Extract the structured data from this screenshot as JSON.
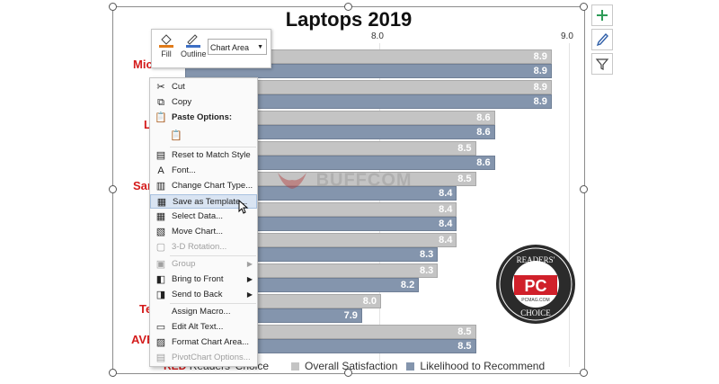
{
  "chart": {
    "title": "Laptops 2019",
    "ticks": [
      "8.0",
      "9.0"
    ]
  },
  "chart_data": {
    "type": "bar",
    "title": "Laptops 2019",
    "categories": [
      "Mic",
      "L",
      "",
      "Sam",
      "",
      "",
      "",
      "",
      "Te",
      "AVE"
    ],
    "series": [
      {
        "name": "Overall Satisfaction",
        "values": [
          8.9,
          8.9,
          8.6,
          8.5,
          8.5,
          8.4,
          8.4,
          8.3,
          8.0,
          8.5
        ]
      },
      {
        "name": "Likelihood to Recommend",
        "values": [
          8.9,
          8.9,
          8.6,
          8.6,
          8.4,
          8.4,
          8.3,
          8.2,
          7.9,
          8.5
        ]
      }
    ],
    "xlim": [
      7.0,
      9.0
    ],
    "grid": true,
    "legend": "bottom"
  },
  "labels": {
    "values_sat": [
      "8.9",
      "8.9",
      "8.6",
      "8.5",
      "8.5",
      "8.4",
      "8.4",
      "8.3",
      "8.0",
      "8.5"
    ],
    "values_rec": [
      "8.9",
      "8.9",
      "8.6",
      "8.6",
      "8.4",
      "8.4",
      "8.3",
      "8.2",
      "7.9",
      "8.5"
    ],
    "cat_mic": "Mic",
    "cat_l": "L",
    "cat_sam": "Sam",
    "cat_te": "Te",
    "cat_ave": "AVE"
  },
  "legend": {
    "red_label": "RED",
    "readers_choice": "Readers' Choice",
    "sat": "Overall Satisfaction",
    "rec": "Likelihood to Recommend"
  },
  "format_bar": {
    "fill": "Fill",
    "outline": "Outline",
    "selection": "Chart Area"
  },
  "context_menu": {
    "cut": "Cut",
    "copy": "Copy",
    "paste_options": "Paste Options:",
    "reset": "Reset to Match Style",
    "font": "Font...",
    "change_type": "Change Chart Type...",
    "save_template": "Save as Template...",
    "select_data": "Select Data...",
    "move_chart": "Move Chart...",
    "rotation": "3-D Rotation...",
    "group": "Group",
    "bring_front": "Bring to Front",
    "send_back": "Send to Back",
    "assign_macro": "Assign Macro...",
    "alt_text": "Edit Alt Text...",
    "format_area": "Format Chart Area...",
    "pivot_options": "PivotChart Options..."
  },
  "badge": {
    "top": "READERS'",
    "pc": "PC",
    "site": "PCMAG.COM",
    "bottom": "CHOICE"
  },
  "watermark": "BUFFCOM",
  "colors": {
    "sat": "#c4c4c4",
    "rec": "#8495ad",
    "category_red": "#d41b1b",
    "badge_red": "#d0202a"
  }
}
